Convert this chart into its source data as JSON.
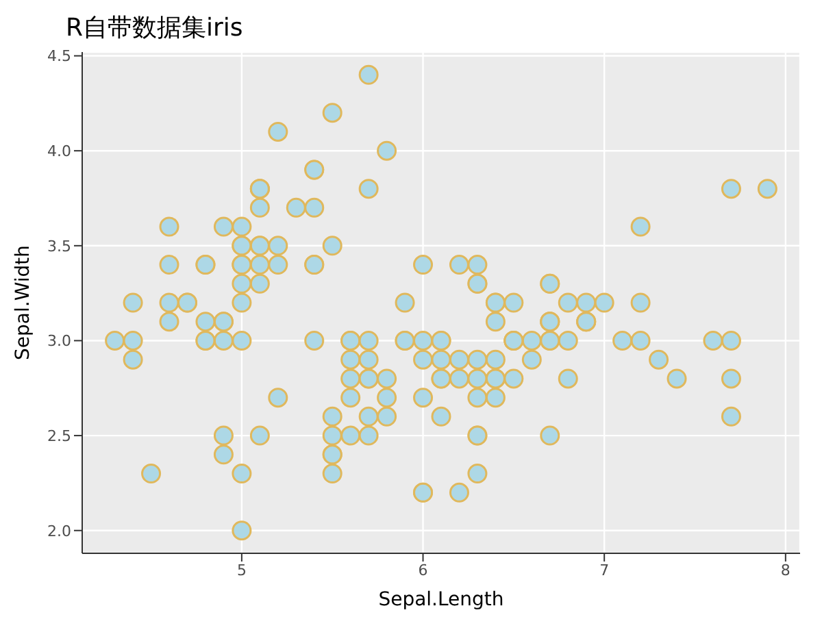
{
  "chart_data": {
    "type": "scatter",
    "title": "R自带数据集iris",
    "xlabel": "Sepal.Length",
    "ylabel": "Sepal.Width",
    "color": "#add8e6",
    "marker": "circle",
    "grid": true,
    "xlim": [
      4.12,
      8.08
    ],
    "xticks": [
      5,
      6,
      7,
      8
    ],
    "ylim": [
      1.88,
      4.52
    ],
    "yticks": [
      {
        "value": 2,
        "label": "2.0"
      },
      2.5,
      {
        "value": 3,
        "label": "3.0"
      },
      3.5,
      {
        "value": 4,
        "label": "4.0"
      },
      4.5
    ],
    "x": [
      5.1,
      4.9,
      4.7,
      4.6,
      5.0,
      5.4,
      4.6,
      5.0,
      4.4,
      4.9,
      5.4,
      4.8,
      4.8,
      4.3,
      5.8,
      5.7,
      5.4,
      5.1,
      5.7,
      5.1,
      5.4,
      5.1,
      4.6,
      5.1,
      4.8,
      5.0,
      5.0,
      5.2,
      5.2,
      4.7,
      4.8,
      5.4,
      5.2,
      5.5,
      4.9,
      5.0,
      5.5,
      4.9,
      4.4,
      5.1,
      5.0,
      4.5,
      4.4,
      5.0,
      5.1,
      4.8,
      5.1,
      4.6,
      5.3,
      5.0,
      7.0,
      6.4,
      6.9,
      5.5,
      6.5,
      5.7,
      6.3,
      4.9,
      6.6,
      5.2,
      5.0,
      5.9,
      6.0,
      6.1,
      5.6,
      6.7,
      5.6,
      5.8,
      6.2,
      5.6,
      5.9,
      6.1,
      6.3,
      6.1,
      6.4,
      6.6,
      6.8,
      6.7,
      6.0,
      5.7,
      5.5,
      5.5,
      6.0,
      5.4,
      6.0,
      6.7,
      6.3,
      5.6,
      5.5,
      5.5,
      6.1,
      5.8,
      5.0,
      5.6,
      5.7,
      5.7,
      6.2,
      5.1,
      5.7,
      6.3,
      7.1,
      6.3,
      6.5,
      7.6,
      4.9,
      7.3,
      6.7,
      7.2,
      6.5,
      6.4,
      6.8,
      5.7,
      5.8,
      6.4,
      6.5,
      7.7,
      7.7,
      6.0,
      6.9,
      5.6,
      7.7,
      6.3,
      6.7,
      7.2,
      6.2,
      6.1,
      6.4,
      7.2,
      7.4,
      7.9,
      6.4,
      6.3,
      6.1,
      7.7,
      6.3,
      6.4,
      6.0,
      6.9,
      6.7,
      6.9,
      6.8,
      6.7,
      6.7,
      6.3,
      6.5,
      6.2,
      5.9
    ],
    "values": [
      3.5,
      3.0,
      3.2,
      3.1,
      3.6,
      3.9,
      3.4,
      3.4,
      2.9,
      3.1,
      3.7,
      3.4,
      3.0,
      3.0,
      4.0,
      4.4,
      3.9,
      3.5,
      3.8,
      3.8,
      3.4,
      3.7,
      3.6,
      3.3,
      3.4,
      3.0,
      3.4,
      3.5,
      3.4,
      3.2,
      3.1,
      3.4,
      4.1,
      4.2,
      3.1,
      3.2,
      3.5,
      3.6,
      3.0,
      3.4,
      3.5,
      2.3,
      3.2,
      3.5,
      3.8,
      3.0,
      3.8,
      3.2,
      3.7,
      3.3,
      3.2,
      3.2,
      3.1,
      2.3,
      2.8,
      2.8,
      3.3,
      2.4,
      2.9,
      2.7,
      2.0,
      3.0,
      2.2,
      2.9,
      2.9,
      3.1,
      3.0,
      2.7,
      2.2,
      2.5,
      3.2,
      2.8,
      2.5,
      2.8,
      2.9,
      3.0,
      2.8,
      3.0,
      2.9,
      2.6,
      2.4,
      2.4,
      2.7,
      3.0,
      3.4,
      3.1,
      2.3,
      3.0,
      2.5,
      2.6,
      3.0,
      2.6,
      2.3,
      2.7,
      3.0,
      2.9,
      2.9,
      2.5,
      2.8,
      3.3,
      3.0,
      2.9,
      3.0,
      3.0,
      2.5,
      2.9,
      2.5,
      3.6,
      3.2,
      2.7,
      3.0,
      2.5,
      2.8,
      3.2,
      3.0,
      3.8,
      2.6,
      2.2,
      3.2,
      2.8,
      2.8,
      2.7,
      3.3,
      3.2,
      2.8,
      3.0,
      2.8,
      3.0,
      2.8,
      3.8,
      2.8,
      2.8,
      2.6,
      3.0,
      3.4,
      3.1,
      3.0,
      3.1,
      3.1,
      3.1,
      3.2,
      3.3,
      3.0,
      2.5,
      3.0,
      3.4,
      3.0
    ]
  }
}
